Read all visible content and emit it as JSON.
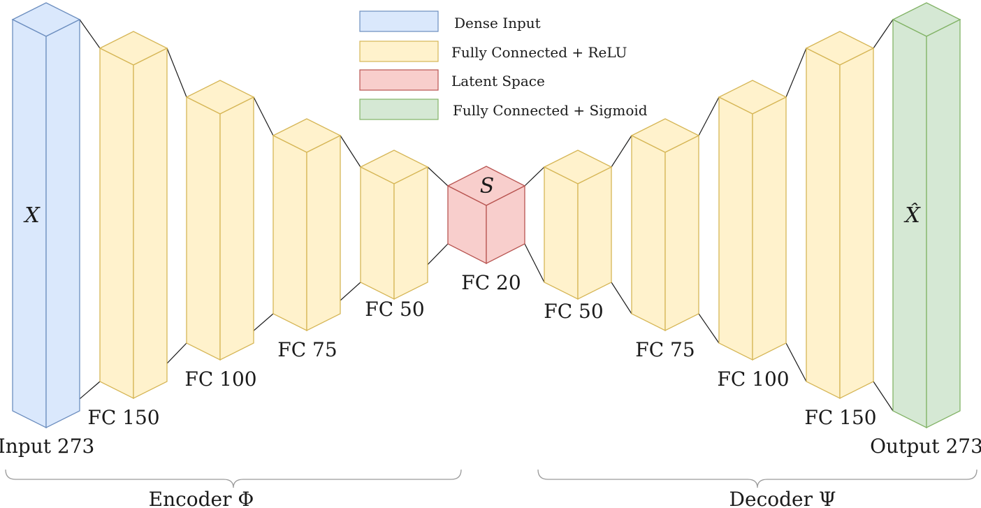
{
  "colors": {
    "dense": {
      "fill": "#dae8fc",
      "stroke": "#6c8ebf"
    },
    "relu": {
      "fill": "#fff2cc",
      "stroke": "#d6b656"
    },
    "latent": {
      "fill": "#f8cecc",
      "stroke": "#b85450"
    },
    "sigmoid": {
      "fill": "#d5e8d4",
      "stroke": "#82b366"
    }
  },
  "legend": [
    {
      "key": "dense",
      "label": "Dense Input"
    },
    {
      "key": "relu",
      "label": "Fully Connected + ReLU"
    },
    {
      "key": "latent",
      "label": "Latent Space"
    },
    {
      "key": "sigmoid",
      "label": "Fully Connected + Sigmoid"
    }
  ],
  "layers": [
    {
      "id": "input",
      "kind": "dense",
      "label": "Input 273",
      "symbol": "X"
    },
    {
      "id": "enc-fc150",
      "kind": "relu",
      "label": "FC 150"
    },
    {
      "id": "enc-fc100",
      "kind": "relu",
      "label": "FC 100"
    },
    {
      "id": "enc-fc75",
      "kind": "relu",
      "label": "FC 75"
    },
    {
      "id": "enc-fc50",
      "kind": "relu",
      "label": "FC 50"
    },
    {
      "id": "latent",
      "kind": "latent",
      "label": "FC 20",
      "symbol": "S"
    },
    {
      "id": "dec-fc50",
      "kind": "relu",
      "label": "FC 50"
    },
    {
      "id": "dec-fc75",
      "kind": "relu",
      "label": "FC 75"
    },
    {
      "id": "dec-fc100",
      "kind": "relu",
      "label": "FC 100"
    },
    {
      "id": "dec-fc150",
      "kind": "relu",
      "label": "FC 150"
    },
    {
      "id": "output",
      "kind": "sigmoid",
      "label": "Output 273",
      "symbol": "X̂"
    }
  ],
  "groups": {
    "encoder": "Encoder Φ",
    "decoder": "Decoder Ψ"
  }
}
